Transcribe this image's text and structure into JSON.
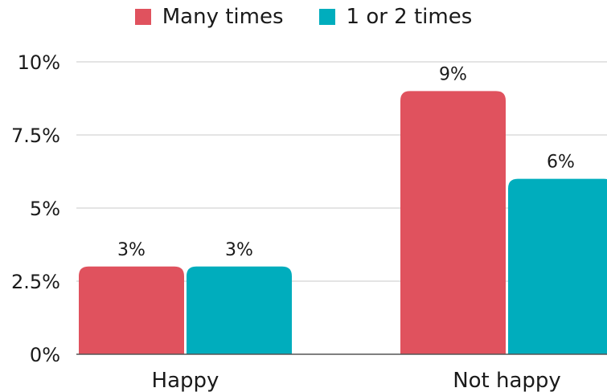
{
  "chart_data": {
    "type": "bar",
    "categories": [
      "Happy",
      "Not happy"
    ],
    "series": [
      {
        "name": "Many times",
        "values": [
          3,
          9
        ],
        "color": "#e0525e"
      },
      {
        "name": "1 or 2 times",
        "values": [
          3,
          6
        ],
        "color": "#00adbd"
      }
    ],
    "data_labels": [
      [
        "3%",
        "9%"
      ],
      [
        "3%",
        "6%"
      ]
    ],
    "y_ticks": [
      0,
      2.5,
      5,
      7.5,
      10
    ],
    "y_tick_labels": [
      "0%",
      "2.5%",
      "5%",
      "7.5%",
      "10%"
    ],
    "ylim": [
      0,
      10
    ],
    "grid": true,
    "legend_position": "top-center"
  }
}
